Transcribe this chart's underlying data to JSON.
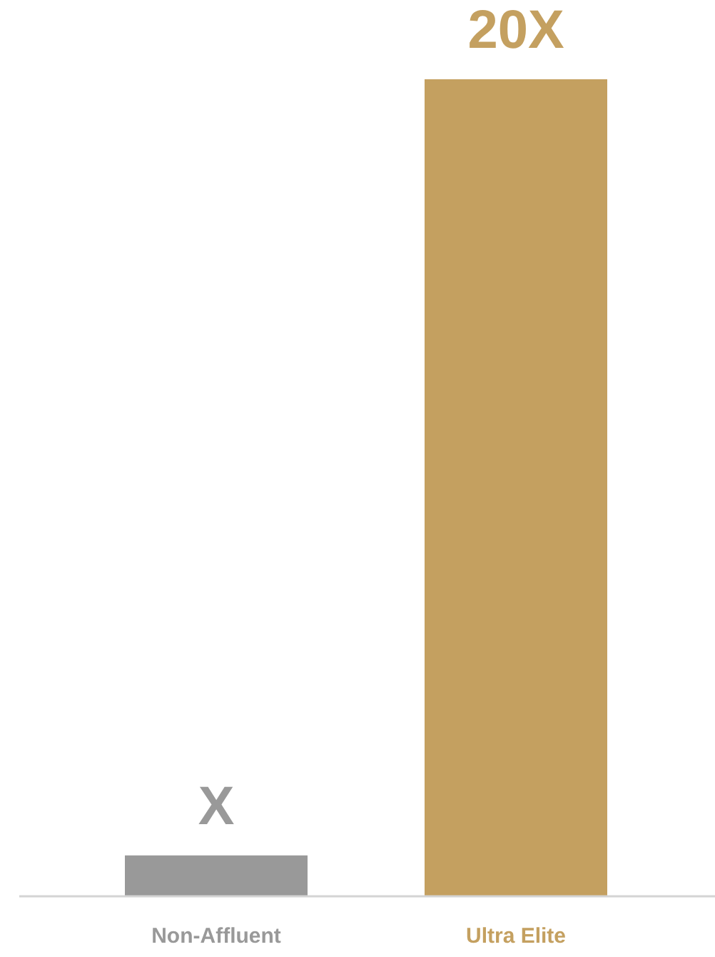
{
  "chart_data": {
    "type": "bar",
    "categories": [
      "Non-Affluent",
      "Ultra Elite"
    ],
    "values": [
      1,
      20
    ],
    "colors": [
      "#999999",
      "#c4a060"
    ],
    "value_labels": [
      "X",
      "20X"
    ],
    "grid": false
  }
}
